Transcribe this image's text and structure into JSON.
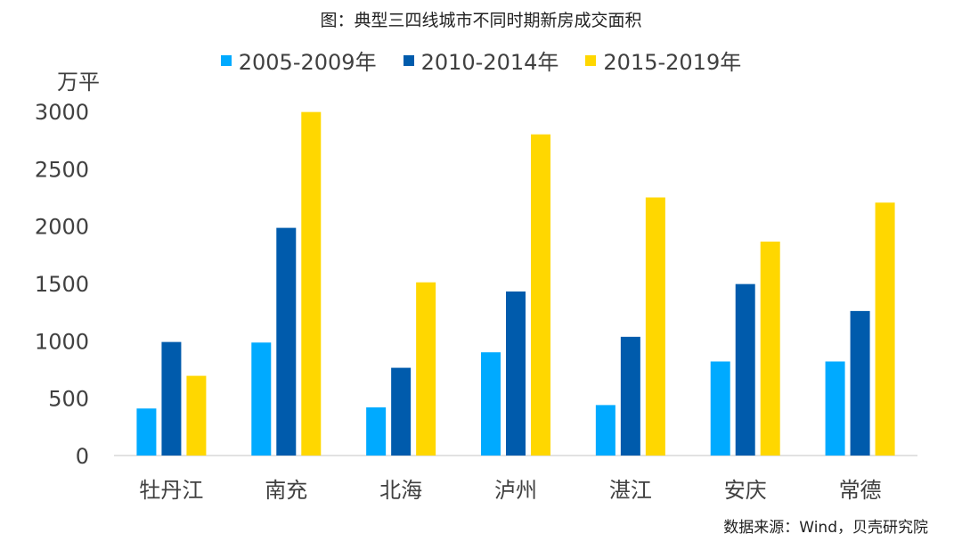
{
  "chart_data": {
    "type": "bar",
    "title": "图：典型三四线城市不同时期新房成交面积",
    "ylabel": "万平",
    "categories": [
      "牡丹江",
      "南充",
      "北海",
      "泸州",
      "湛江",
      "安庆",
      "常德"
    ],
    "series": [
      {
        "name": "2005-2009年",
        "color": "#00AAFF",
        "values": [
          410,
          985,
          420,
          900,
          440,
          820,
          820
        ]
      },
      {
        "name": "2010-2014年",
        "color": "#005BAC",
        "values": [
          990,
          1985,
          765,
          1430,
          1035,
          1495,
          1260
        ]
      },
      {
        "name": "2015-2019年",
        "color": "#FFD700",
        "values": [
          695,
          2995,
          1510,
          2800,
          2250,
          1865,
          2205
        ]
      }
    ],
    "ylim": [
      0,
      3000
    ],
    "yticks": [
      0,
      500,
      1000,
      1500,
      2000,
      2500,
      3000
    ],
    "grid": false,
    "legend_position": "top-center",
    "source": "数据来源：Wind，贝壳研究院"
  }
}
